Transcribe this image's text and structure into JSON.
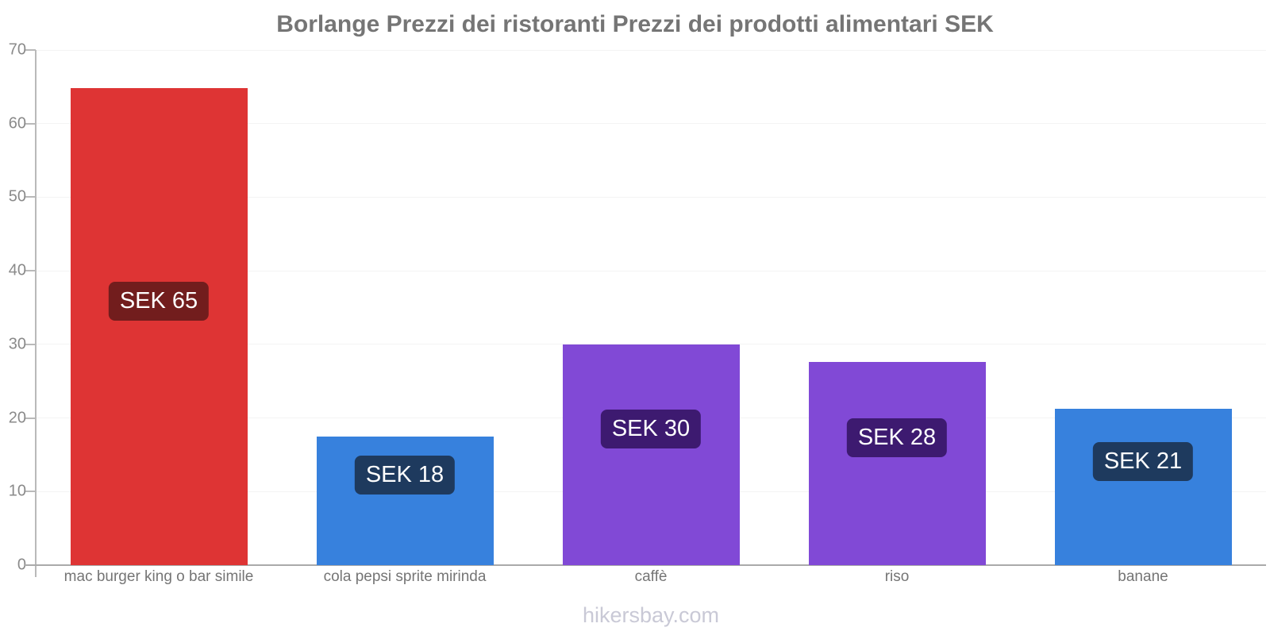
{
  "page": {
    "footer": "hikersbay.com"
  },
  "chart_data": {
    "type": "bar",
    "title": "Borlange Prezzi dei ristoranti Prezzi dei prodotti alimentari SEK",
    "categories": [
      "mac burger king o bar simile",
      "cola pepsi sprite mirinda",
      "caffè",
      "riso",
      "banane"
    ],
    "values": [
      64.8,
      17.5,
      30,
      27.6,
      21.3
    ],
    "data_labels": [
      "SEK 65",
      "SEK 18",
      "SEK 30",
      "SEK 28",
      "SEK 21"
    ],
    "bar_colors": [
      "#de3434",
      "#3781dd",
      "#8149d6",
      "#8149d6",
      "#3781dd"
    ],
    "label_bg_colors": [
      "#721d1d",
      "#1e3a5e",
      "#3d1a70",
      "#3d1a70",
      "#1e3a5e"
    ],
    "label_text_color": "#ffffff",
    "xlabel": "",
    "ylabel": "",
    "ylim": [
      0,
      70
    ],
    "yticks": [
      0,
      10,
      20,
      30,
      40,
      50,
      60,
      70
    ],
    "grid": true,
    "legend": "none",
    "currency": "SEK"
  }
}
